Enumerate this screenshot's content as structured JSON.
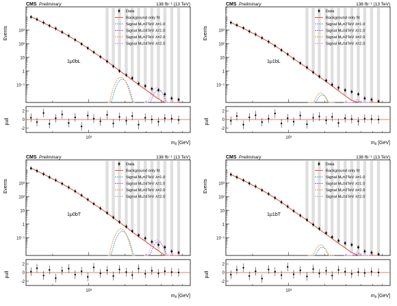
{
  "figure": {
    "cms_label": "CMS",
    "preliminary_label": "Preliminary",
    "lumi_label": "138 fb⁻¹ (13 TeV)",
    "ylabel_main": "Events",
    "ylabel_pull": "pull",
    "xlabel": "mⱼⱼ [GeV]",
    "legend": {
      "data": "Data",
      "background": "Background only fit",
      "signal_2_1": "Signal Mᵤ=2TeV λ=1.0",
      "signal_4_1": "Signal Mᵤ=4TeV λ=1.0",
      "signal_2_2": "Signal Mᵤ=2TeV λ=2.0",
      "signal_4_2": "Signal Mᵤ=4TeV λ=2.0"
    },
    "colors": {
      "background_fit": "#e0503c",
      "signal_2_1": "#3a9ad9",
      "signal_4_1": "#9a4fd0",
      "signal_2_2": "#f08a24",
      "signal_4_2": "#c9a0d8",
      "data": "#000000",
      "unc_band": "#b8b8b8"
    }
  },
  "chart_data": [
    {
      "category": "1μ0bL",
      "type": "scatter",
      "xscale": "log",
      "yscale": "log",
      "xlim": [
        300,
        7000
      ],
      "ylim": [
        0.005,
        50000
      ],
      "pull_ylim": [
        -3,
        3
      ],
      "x_tick_labels": [
        "10³"
      ],
      "y_tick_labels": [
        "10³",
        "10²",
        "10",
        "1",
        "10⁻¹"
      ],
      "pull_tick_labels": [
        "2",
        "0",
        "-2"
      ],
      "x": [
        330,
        370,
        420,
        470,
        530,
        600,
        680,
        770,
        870,
        980,
        1100,
        1250,
        1420,
        1600,
        1800,
        2050,
        2300,
        2600,
        2950,
        3350,
        3800,
        4300,
        4900,
        5600
      ],
      "data_y": [
        9000,
        6000,
        3500,
        2100,
        1300,
        700,
        380,
        190,
        95,
        48,
        24,
        11,
        5,
        2.2,
        1,
        0.5,
        0.3,
        0.12,
        0.08,
        0.05,
        0.04,
        0.02,
        0.01,
        0.008
      ],
      "background_y": [
        9500,
        5800,
        3400,
        2000,
        1200,
        680,
        370,
        190,
        96,
        47,
        23,
        11,
        5.1,
        2.3,
        1.05,
        0.48,
        0.22,
        0.1,
        0.045,
        0.02,
        0.009,
        0.004,
        0.002,
        0.001
      ],
      "signals": [
        {
          "key": "signal_2_1",
          "peak_x": 1900,
          "peak_y": 0.25
        },
        {
          "key": "signal_2_2",
          "peak_x": 1850,
          "peak_y": 0.35
        },
        {
          "key": "signal_4_1",
          "peak_x": 3800,
          "peak_y": 0.04
        },
        {
          "key": "signal_4_2",
          "peak_x": 3700,
          "peak_y": 0.06
        }
      ],
      "pulls": [
        0.4,
        -0.6,
        1.5,
        -1.0,
        0.3,
        1.2,
        -0.8,
        0.5,
        -1.6,
        0.9,
        0.2,
        -0.4,
        1.1,
        -0.9,
        0.6,
        -0.3,
        0.8,
        -1.2,
        0.4,
        0.0,
        -0.5,
        0.3,
        0.2,
        -0.1
      ]
    },
    {
      "category": "1μ1bL",
      "type": "scatter",
      "xscale": "log",
      "yscale": "log",
      "xlim": [
        300,
        7000
      ],
      "ylim": [
        0.005,
        50000
      ],
      "pull_ylim": [
        -3,
        3
      ],
      "x_tick_labels": [
        "10³"
      ],
      "y_tick_labels": [
        "10³",
        "10²",
        "10",
        "1",
        "10⁻¹"
      ],
      "pull_tick_labels": [
        "2",
        "0",
        "-2"
      ],
      "x": [
        330,
        370,
        420,
        470,
        530,
        600,
        680,
        770,
        870,
        980,
        1100,
        1250,
        1420,
        1600,
        1800,
        2050,
        2300,
        2600,
        2950,
        3350,
        3800,
        4300,
        4900,
        5600
      ],
      "data_y": [
        3500,
        2300,
        1400,
        800,
        480,
        260,
        140,
        70,
        34,
        17,
        8,
        3.8,
        1.8,
        0.8,
        0.4,
        0.2,
        0.1,
        0.06,
        0.04,
        0.03,
        0.02,
        0.01,
        0.008,
        0.006
      ],
      "background_y": [
        3600,
        2200,
        1350,
        780,
        470,
        255,
        138,
        70,
        34,
        16.5,
        7.8,
        3.7,
        1.75,
        0.8,
        0.37,
        0.17,
        0.08,
        0.036,
        0.016,
        0.007,
        0.003,
        0.0014,
        0.0006,
        0.0003
      ],
      "signals": [
        {
          "key": "signal_2_1",
          "peak_x": 1900,
          "peak_y": 0.018
        },
        {
          "key": "signal_2_2",
          "peak_x": 1850,
          "peak_y": 0.025
        },
        {
          "key": "signal_4_1",
          "peak_x": 3800,
          "peak_y": 0.006
        },
        {
          "key": "signal_4_2",
          "peak_x": 3700,
          "peak_y": 0.008
        }
      ],
      "pulls": [
        -0.3,
        0.8,
        -1.2,
        0.5,
        1.0,
        -0.6,
        0.2,
        1.4,
        -0.9,
        0.3,
        -0.5,
        0.9,
        -1.1,
        0.4,
        0.7,
        -0.2,
        0.6,
        -0.8,
        0.3,
        0.1,
        -0.4,
        0.2,
        0.1,
        0.0
      ]
    },
    {
      "category": "1μ0bT",
      "type": "scatter",
      "xscale": "log",
      "yscale": "log",
      "xlim": [
        300,
        7000
      ],
      "ylim": [
        0.005,
        50000
      ],
      "pull_ylim": [
        -3,
        3
      ],
      "x_tick_labels": [
        "10³"
      ],
      "y_tick_labels": [
        "10³",
        "10²",
        "10",
        "1",
        "10⁻¹"
      ],
      "pull_tick_labels": [
        "2",
        "0",
        "-2"
      ],
      "x": [
        330,
        370,
        420,
        470,
        530,
        600,
        680,
        770,
        870,
        980,
        1100,
        1250,
        1420,
        1600,
        1800,
        2050,
        2300,
        2600,
        2950,
        3350,
        3800,
        4300,
        4900,
        5600
      ],
      "data_y": [
        12000,
        7800,
        4600,
        2700,
        1600,
        900,
        480,
        250,
        125,
        62,
        30,
        14,
        6.5,
        3,
        1.4,
        0.65,
        0.3,
        0.15,
        0.09,
        0.05,
        0.03,
        0.02,
        0.01,
        0.008
      ],
      "background_y": [
        12500,
        7600,
        4500,
        2650,
        1550,
        880,
        470,
        245,
        122,
        60,
        29,
        13.8,
        6.4,
        2.9,
        1.3,
        0.6,
        0.27,
        0.12,
        0.055,
        0.024,
        0.011,
        0.005,
        0.002,
        0.001
      ],
      "signals": [
        {
          "key": "signal_2_1",
          "peak_x": 1900,
          "peak_y": 0.3
        },
        {
          "key": "signal_2_2",
          "peak_x": 1850,
          "peak_y": 0.45
        },
        {
          "key": "signal_4_1",
          "peak_x": 3800,
          "peak_y": 0.05
        },
        {
          "key": "signal_4_2",
          "peak_x": 3700,
          "peak_y": 0.07
        }
      ],
      "pulls": [
        0.2,
        1.0,
        -0.7,
        0.6,
        -1.3,
        0.4,
        0.9,
        -0.5,
        0.3,
        -1.0,
        1.2,
        -0.2,
        0.5,
        -0.8,
        0.7,
        0.1,
        -0.6,
        0.9,
        -0.3,
        0.4,
        -0.2,
        0.3,
        0.1,
        0.0
      ]
    },
    {
      "category": "1μ1bT",
      "type": "scatter",
      "xscale": "log",
      "yscale": "log",
      "xlim": [
        300,
        7000
      ],
      "ylim": [
        0.005,
        50000
      ],
      "pull_ylim": [
        -3,
        3
      ],
      "x_tick_labels": [
        "10³"
      ],
      "y_tick_labels": [
        "10³",
        "10²",
        "10",
        "1",
        "10⁻¹"
      ],
      "pull_tick_labels": [
        "2",
        "0",
        "-2"
      ],
      "x": [
        330,
        370,
        420,
        470,
        530,
        600,
        680,
        770,
        870,
        980,
        1100,
        1250,
        1420,
        1600,
        1800,
        2050,
        2300,
        2600,
        2950,
        3350,
        3800,
        4300,
        4900,
        5600
      ],
      "data_y": [
        4200,
        2700,
        1600,
        950,
        560,
        300,
        160,
        82,
        40,
        19,
        9,
        4.2,
        2,
        0.9,
        0.45,
        0.22,
        0.11,
        0.06,
        0.04,
        0.03,
        0.02,
        0.01,
        0.008,
        0.006
      ],
      "background_y": [
        4300,
        2650,
        1580,
        930,
        550,
        298,
        158,
        80,
        39,
        18.5,
        8.8,
        4.1,
        1.9,
        0.88,
        0.4,
        0.18,
        0.085,
        0.039,
        0.018,
        0.008,
        0.0035,
        0.0016,
        0.0007,
        0.0003
      ],
      "signals": [
        {
          "key": "signal_2_1",
          "peak_x": 1900,
          "peak_y": 0.02
        },
        {
          "key": "signal_2_2",
          "peak_x": 1850,
          "peak_y": 0.03
        },
        {
          "key": "signal_4_1",
          "peak_x": 3800,
          "peak_y": 0.007
        },
        {
          "key": "signal_4_2",
          "peak_x": 3700,
          "peak_y": 0.009
        }
      ],
      "pulls": [
        -0.5,
        0.6,
        1.1,
        -0.8,
        0.3,
        -1.4,
        0.7,
        0.2,
        -0.6,
        1.3,
        -0.4,
        0.5,
        -0.9,
        0.8,
        -0.2,
        0.4,
        -0.7,
        0.6,
        0.2,
        -0.3,
        0.1,
        -0.1,
        0.2,
        0.0
      ]
    }
  ]
}
